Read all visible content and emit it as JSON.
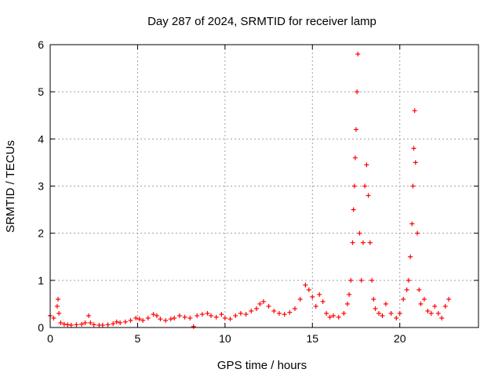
{
  "chart_data": {
    "type": "scatter",
    "title": "Day 287 of 2024, SRMTID for receiver lamp",
    "xlabel": "GPS time / hours",
    "ylabel": "SRMTID / TECUs",
    "xlim": [
      0,
      24.5
    ],
    "ylim": [
      0,
      6
    ],
    "x_ticks": [
      0,
      5,
      10,
      15,
      20
    ],
    "y_ticks": [
      0,
      1,
      2,
      3,
      4,
      5,
      6
    ],
    "grid": true,
    "marker": "+",
    "color": "#ff0000",
    "series": [
      {
        "name": "SRMTID",
        "x": [
          0.0,
          0.2,
          0.4,
          0.45,
          0.5,
          0.6,
          0.8,
          1.0,
          1.2,
          1.5,
          1.8,
          2.0,
          2.2,
          2.3,
          2.5,
          2.8,
          3.0,
          3.3,
          3.6,
          3.8,
          4.0,
          4.3,
          4.6,
          4.9,
          5.1,
          5.3,
          5.6,
          5.9,
          6.1,
          6.3,
          6.6,
          6.9,
          7.1,
          7.4,
          7.7,
          8.0,
          8.2,
          8.4,
          8.7,
          9.0,
          9.2,
          9.5,
          9.8,
          10.0,
          10.3,
          10.6,
          10.9,
          11.2,
          11.5,
          11.8,
          12.0,
          12.2,
          12.5,
          12.8,
          13.1,
          13.4,
          13.7,
          14.0,
          14.3,
          14.6,
          14.8,
          15.0,
          15.2,
          15.4,
          15.6,
          15.8,
          16.0,
          16.2,
          16.5,
          16.8,
          17.0,
          17.1,
          17.2,
          17.3,
          17.35,
          17.4,
          17.45,
          17.5,
          17.55,
          17.6,
          17.7,
          17.8,
          17.9,
          18.0,
          18.1,
          18.2,
          18.3,
          18.4,
          18.5,
          18.6,
          18.8,
          19.0,
          19.2,
          19.5,
          19.8,
          20.0,
          20.2,
          20.4,
          20.5,
          20.6,
          20.7,
          20.75,
          20.8,
          20.85,
          20.9,
          21.0,
          21.1,
          21.2,
          21.4,
          21.6,
          21.8,
          22.0,
          22.2,
          22.4,
          22.6,
          22.8
        ],
        "y": [
          0.25,
          0.2,
          0.45,
          0.6,
          0.3,
          0.1,
          0.07,
          0.06,
          0.05,
          0.06,
          0.07,
          0.1,
          0.25,
          0.1,
          0.06,
          0.05,
          0.05,
          0.06,
          0.08,
          0.12,
          0.1,
          0.12,
          0.15,
          0.2,
          0.18,
          0.15,
          0.2,
          0.28,
          0.25,
          0.18,
          0.15,
          0.18,
          0.2,
          0.25,
          0.22,
          0.2,
          0.02,
          0.25,
          0.28,
          0.3,
          0.25,
          0.22,
          0.28,
          0.2,
          0.18,
          0.25,
          0.3,
          0.28,
          0.35,
          0.4,
          0.5,
          0.55,
          0.45,
          0.35,
          0.3,
          0.28,
          0.32,
          0.4,
          0.6,
          0.9,
          0.8,
          0.65,
          0.45,
          0.7,
          0.55,
          0.3,
          0.22,
          0.25,
          0.22,
          0.3,
          0.5,
          0.7,
          1.0,
          1.8,
          2.5,
          3.0,
          3.6,
          4.2,
          5.0,
          5.8,
          2.0,
          1.0,
          1.8,
          3.0,
          3.45,
          2.8,
          1.8,
          1.0,
          0.6,
          0.4,
          0.3,
          0.25,
          0.5,
          0.3,
          0.2,
          0.3,
          0.6,
          0.8,
          1.0,
          1.5,
          2.2,
          3.0,
          3.8,
          4.6,
          3.5,
          2.0,
          0.8,
          0.5,
          0.6,
          0.35,
          0.3,
          0.45,
          0.3,
          0.2,
          0.45,
          0.6
        ]
      }
    ]
  }
}
